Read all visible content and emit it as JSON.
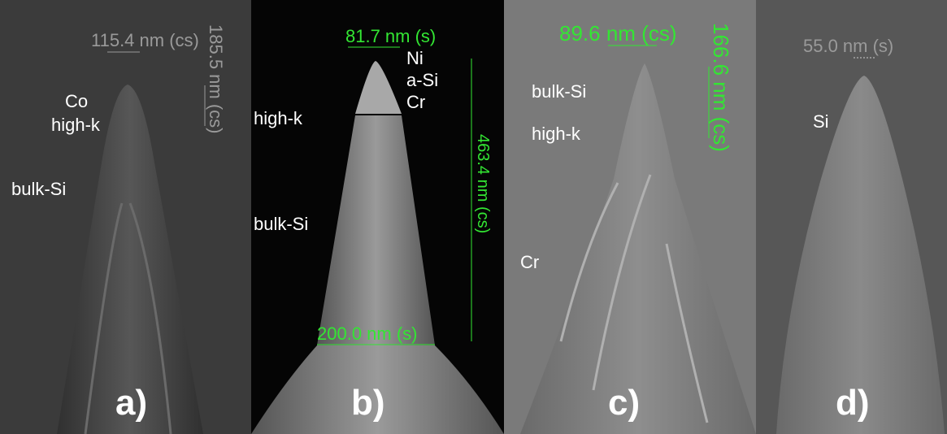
{
  "panels": [
    {
      "label": "a)",
      "annotations": [
        "115.4 nm (cs)",
        "185.5 nm (cs)",
        "Co",
        "high-k",
        "bulk-Si"
      ]
    },
    {
      "label": "b)",
      "annotations": [
        "81.7 nm (s)",
        "Ni",
        "a-Si",
        "Cr",
        "high-k",
        "bulk-Si",
        "463.4 nm (cs)",
        "200.0 nm (s)"
      ]
    },
    {
      "label": "c)",
      "annotations": [
        "89.6 nm (cs)",
        "166.6 nm (cs)",
        "bulk-Si",
        "high-k",
        "Cr"
      ]
    },
    {
      "label": "d)",
      "annotations": [
        "55.0 nm (s)",
        "Si"
      ]
    }
  ]
}
